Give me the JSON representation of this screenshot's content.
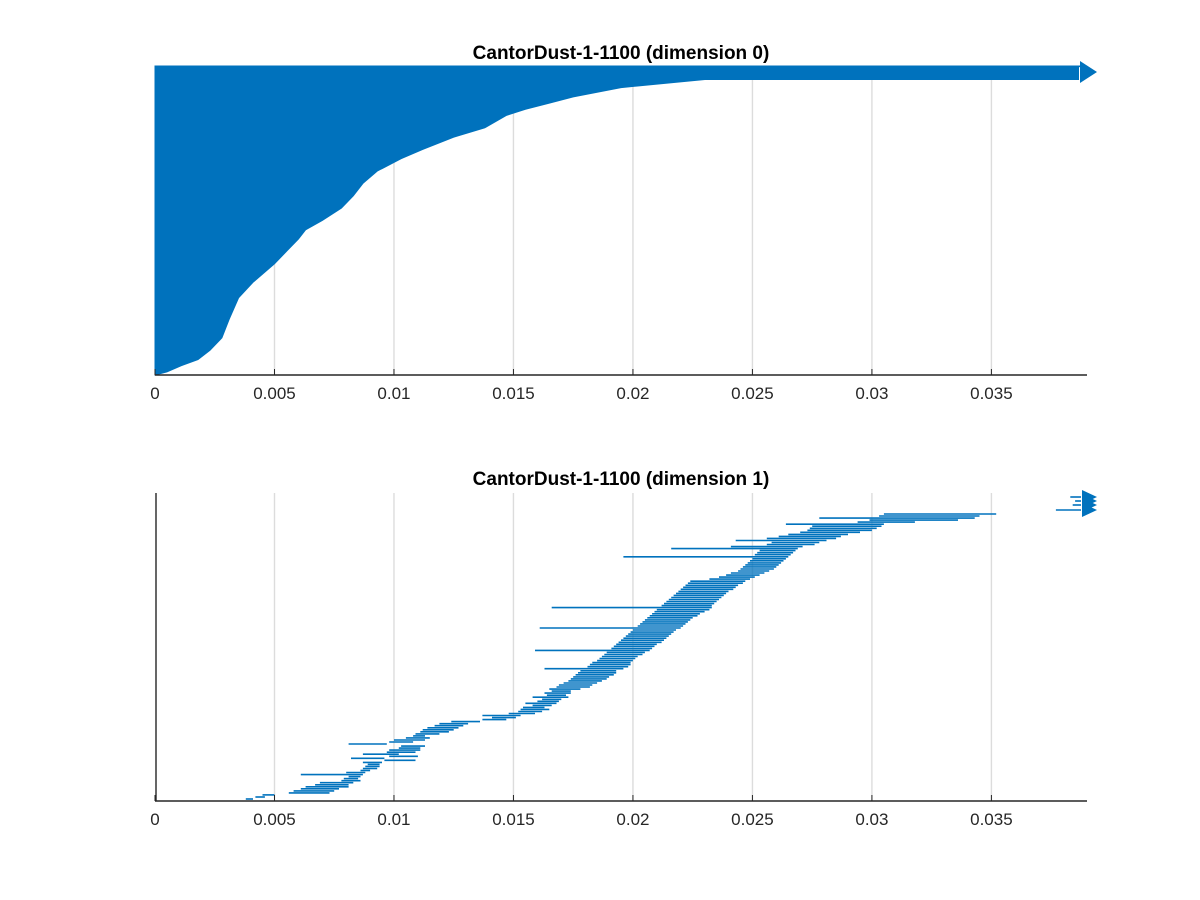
{
  "chart_data": [
    {
      "type": "barcode",
      "title": "CantorDust-1-1100 (dimension 0)",
      "xlim": [
        0,
        0.039
      ],
      "xticks": [
        0,
        0.005,
        0.01,
        0.015,
        0.02,
        0.025,
        0.03,
        0.035
      ],
      "xtick_labels": [
        "0",
        "0.005",
        "0.01",
        "0.015",
        "0.02",
        "0.025",
        "0.03",
        "0.035"
      ],
      "grid": "vertical",
      "color": "#0072BD",
      "bar_count_approx": 1100,
      "infinite_bar": true,
      "profile": {
        "fraction_of_bars": [
          0.0,
          0.01,
          0.03,
          0.05,
          0.08,
          0.12,
          0.18,
          0.25,
          0.3,
          0.36,
          0.4,
          0.44,
          0.47,
          0.5,
          0.54,
          0.58,
          0.62,
          0.66,
          0.7,
          0.73,
          0.77,
          0.8,
          0.84,
          0.86,
          0.88,
          0.9,
          0.93,
          0.96,
          0.97,
          0.98,
          0.99,
          1.0
        ],
        "death_value": [
          0.0,
          0.0005,
          0.0011,
          0.0018,
          0.0023,
          0.0028,
          0.0031,
          0.0035,
          0.0041,
          0.005,
          0.0055,
          0.006,
          0.0063,
          0.007,
          0.0078,
          0.0083,
          0.0087,
          0.0093,
          0.0103,
          0.0112,
          0.0125,
          0.0138,
          0.0147,
          0.0155,
          0.0165,
          0.0175,
          0.0195,
          0.0235,
          0.0265,
          0.03,
          0.0375,
          0.039
        ]
      }
    },
    {
      "type": "barcode",
      "title": "CantorDust-1-1100 (dimension 1)",
      "xlim": [
        0,
        0.039
      ],
      "xticks": [
        0,
        0.005,
        0.01,
        0.015,
        0.02,
        0.025,
        0.03,
        0.035
      ],
      "xtick_labels": [
        "0",
        "0.005",
        "0.01",
        "0.015",
        "0.02",
        "0.025",
        "0.03",
        "0.035"
      ],
      "grid": "vertical",
      "color": "#0072BD",
      "infinite_bars": 4,
      "bars": [
        [
          0.0038,
          0.0041
        ],
        [
          0.0042,
          0.0046
        ],
        [
          0.0045,
          0.005
        ],
        [
          0.0056,
          0.0073
        ],
        [
          0.0058,
          0.0075
        ],
        [
          0.0061,
          0.0077
        ],
        [
          0.0063,
          0.0081
        ],
        [
          0.0067,
          0.0081
        ],
        [
          0.0069,
          0.0083
        ],
        [
          0.0078,
          0.0086
        ],
        [
          0.0079,
          0.0085
        ],
        [
          0.0081,
          0.0086
        ],
        [
          0.0061,
          0.0087
        ],
        [
          0.008,
          0.0088
        ],
        [
          0.0086,
          0.009
        ],
        [
          0.0087,
          0.0093
        ],
        [
          0.0088,
          0.0094
        ],
        [
          0.0089,
          0.0094
        ],
        [
          0.0087,
          0.0095
        ],
        [
          0.0096,
          0.0109
        ],
        [
          0.0082,
          0.0096
        ],
        [
          0.0098,
          0.011
        ],
        [
          0.0087,
          0.0102
        ],
        [
          0.0097,
          0.0109
        ],
        [
          0.0098,
          0.0111
        ],
        [
          0.0102,
          0.0111
        ],
        [
          0.0103,
          0.0113
        ],
        [
          0.0081,
          0.0097
        ],
        [
          0.0098,
          0.0108
        ],
        [
          0.01,
          0.0113
        ],
        [
          0.0105,
          0.0115
        ],
        [
          0.0108,
          0.0113
        ],
        [
          0.0109,
          0.0119
        ],
        [
          0.0111,
          0.0123
        ],
        [
          0.0112,
          0.0125
        ],
        [
          0.0114,
          0.0127
        ],
        [
          0.0117,
          0.0129
        ],
        [
          0.0119,
          0.0131
        ],
        [
          0.0124,
          0.0136
        ],
        [
          0.0137,
          0.0147
        ],
        [
          0.0141,
          0.0151
        ],
        [
          0.0137,
          0.0153
        ],
        [
          0.0148,
          0.0159
        ],
        [
          0.0152,
          0.0162
        ],
        [
          0.0153,
          0.0165
        ],
        [
          0.0154,
          0.0163
        ],
        [
          0.0158,
          0.0166
        ],
        [
          0.0155,
          0.0168
        ],
        [
          0.016,
          0.0169
        ],
        [
          0.0162,
          0.017
        ],
        [
          0.0158,
          0.0173
        ],
        [
          0.0164,
          0.0172
        ],
        [
          0.0163,
          0.0174
        ],
        [
          0.0166,
          0.0174
        ],
        [
          0.0165,
          0.0178
        ],
        [
          0.0168,
          0.0182
        ],
        [
          0.0169,
          0.0183
        ],
        [
          0.0171,
          0.0185
        ],
        [
          0.0173,
          0.0187
        ],
        [
          0.0174,
          0.0189
        ],
        [
          0.0175,
          0.019
        ],
        [
          0.0176,
          0.0192
        ],
        [
          0.0177,
          0.0193
        ],
        [
          0.0178,
          0.0193
        ],
        [
          0.0163,
          0.0196
        ],
        [
          0.0181,
          0.0198
        ],
        [
          0.0182,
          0.0199
        ],
        [
          0.0183,
          0.0199
        ],
        [
          0.0185,
          0.02
        ],
        [
          0.0186,
          0.0201
        ],
        [
          0.0187,
          0.0202
        ],
        [
          0.0188,
          0.0204
        ],
        [
          0.0189,
          0.0205
        ],
        [
          0.0159,
          0.0207
        ],
        [
          0.0191,
          0.0208
        ],
        [
          0.0192,
          0.0209
        ],
        [
          0.0193,
          0.021
        ],
        [
          0.0194,
          0.0212
        ],
        [
          0.0195,
          0.0213
        ],
        [
          0.0196,
          0.0214
        ],
        [
          0.0197,
          0.0215
        ],
        [
          0.0198,
          0.0216
        ],
        [
          0.0199,
          0.0217
        ],
        [
          0.02,
          0.0218
        ],
        [
          0.0161,
          0.022
        ],
        [
          0.0202,
          0.0221
        ],
        [
          0.0203,
          0.0222
        ],
        [
          0.0204,
          0.0223
        ],
        [
          0.0205,
          0.0224
        ],
        [
          0.0206,
          0.0225
        ],
        [
          0.0207,
          0.0227
        ],
        [
          0.0208,
          0.0228
        ],
        [
          0.0209,
          0.023
        ],
        [
          0.021,
          0.0232
        ],
        [
          0.0166,
          0.0233
        ],
        [
          0.0212,
          0.0233
        ],
        [
          0.0213,
          0.0234
        ],
        [
          0.0214,
          0.0235
        ],
        [
          0.0215,
          0.0236
        ],
        [
          0.0216,
          0.0237
        ],
        [
          0.0217,
          0.0238
        ],
        [
          0.0218,
          0.0239
        ],
        [
          0.0219,
          0.024
        ],
        [
          0.022,
          0.0242
        ],
        [
          0.0221,
          0.0243
        ],
        [
          0.0222,
          0.0244
        ],
        [
          0.0223,
          0.0246
        ],
        [
          0.0224,
          0.0247
        ],
        [
          0.0232,
          0.0249
        ],
        [
          0.0236,
          0.0251
        ],
        [
          0.0239,
          0.0253
        ],
        [
          0.0241,
          0.0255
        ],
        [
          0.0244,
          0.0257
        ],
        [
          0.0245,
          0.0259
        ],
        [
          0.0246,
          0.026
        ],
        [
          0.0247,
          0.0261
        ],
        [
          0.0248,
          0.0262
        ],
        [
          0.0249,
          0.0263
        ],
        [
          0.025,
          0.0264
        ],
        [
          0.0196,
          0.0265
        ],
        [
          0.0251,
          0.0266
        ],
        [
          0.0252,
          0.0267
        ],
        [
          0.0253,
          0.0268
        ],
        [
          0.0216,
          0.0269
        ],
        [
          0.0241,
          0.0271
        ],
        [
          0.0256,
          0.0276
        ],
        [
          0.0258,
          0.0278
        ],
        [
          0.0243,
          0.0281
        ],
        [
          0.0256,
          0.0285
        ],
        [
          0.0261,
          0.0287
        ],
        [
          0.0265,
          0.029
        ],
        [
          0.027,
          0.0295
        ],
        [
          0.0273,
          0.03
        ],
        [
          0.0274,
          0.0302
        ],
        [
          0.0275,
          0.0304
        ],
        [
          0.0264,
          0.0305
        ],
        [
          0.0294,
          0.0318
        ],
        [
          0.0299,
          0.0336
        ],
        [
          0.0278,
          0.0343
        ],
        [
          0.0303,
          0.0345
        ],
        [
          0.0305,
          0.0352
        ]
      ]
    }
  ]
}
